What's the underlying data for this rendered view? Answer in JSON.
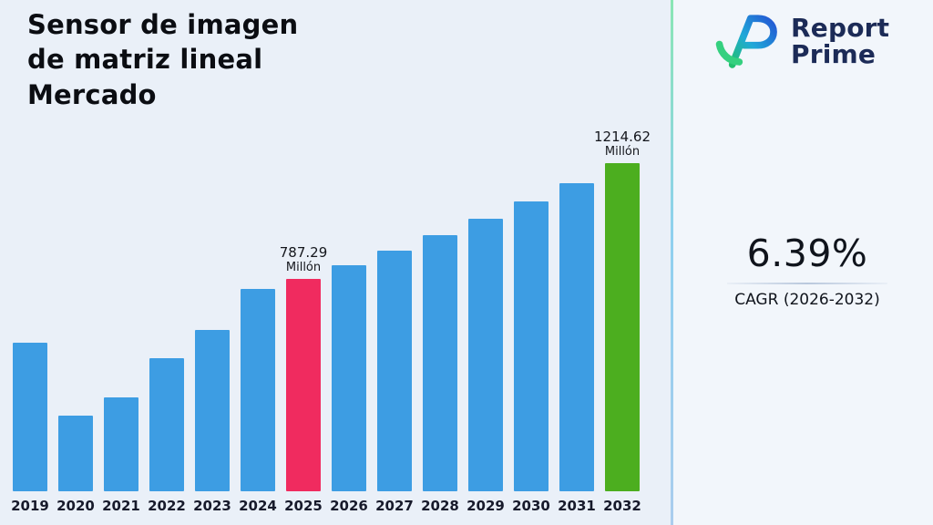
{
  "page": {
    "title_lines": [
      "Sensor de imagen",
      "de matriz lineal",
      "Mercado"
    ]
  },
  "logo": {
    "name_line1": "Report",
    "name_line2": "Prime"
  },
  "stats": {
    "cagr_value": "6.39%",
    "cagr_label": "CAGR (2026-2032)"
  },
  "chart_data": {
    "type": "bar",
    "title": "Sensor de imagen de matriz lineal Mercado",
    "unit": "Millón",
    "categories": [
      "2019",
      "2020",
      "2021",
      "2022",
      "2023",
      "2024",
      "2025",
      "2026",
      "2027",
      "2028",
      "2029",
      "2030",
      "2031",
      "2032"
    ],
    "values": [
      549,
      280,
      346,
      492,
      598,
      749,
      787.29,
      837.6,
      891.1,
      948.1,
      1008.6,
      1073.1,
      1141.7,
      1214.62
    ],
    "ylim": [
      0,
      1250
    ],
    "grid": false,
    "legend": "none",
    "annotations": [
      {
        "year": "2025",
        "value": "787.29",
        "unit": "Millón"
      },
      {
        "year": "2032",
        "value": "1214.62",
        "unit": "Millón"
      }
    ],
    "bar_colors": {
      "default": "#3d9de3",
      "2025": "#f02b5f",
      "2032": "#4cae1f"
    }
  }
}
